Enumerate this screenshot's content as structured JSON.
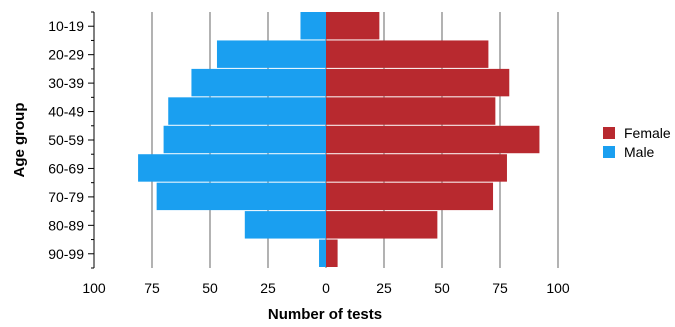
{
  "chart_data": {
    "type": "bar",
    "orientation": "horizontal",
    "layout": "diverging-population-pyramid",
    "categories": [
      "10-19",
      "20-29",
      "30-39",
      "40-49",
      "50-59",
      "60-69",
      "70-79",
      "80-89",
      "90-99"
    ],
    "series": [
      {
        "name": "Female",
        "side": "right",
        "color": "#b8292f",
        "values": [
          23,
          70,
          79,
          73,
          92,
          78,
          72,
          48,
          5
        ]
      },
      {
        "name": "Male",
        "side": "left",
        "color": "#1a9ff0",
        "values": [
          11,
          47,
          58,
          68,
          70,
          81,
          73,
          35,
          3
        ]
      }
    ],
    "xlabel": "Number of tests",
    "ylabel": "Age group",
    "xlim": [
      -100,
      100
    ],
    "xticks": [
      -100,
      -75,
      -50,
      -25,
      0,
      25,
      50,
      75,
      100
    ],
    "xtick_labels": [
      "100",
      "75",
      "50",
      "25",
      "0",
      "25",
      "50",
      "75",
      "100"
    ],
    "grid": "vertical-lines",
    "legend": {
      "position": "right",
      "entries": [
        "Female",
        "Male"
      ]
    },
    "colors": {
      "grid": "#808080",
      "axis": "#000000",
      "text": "#000000"
    }
  }
}
